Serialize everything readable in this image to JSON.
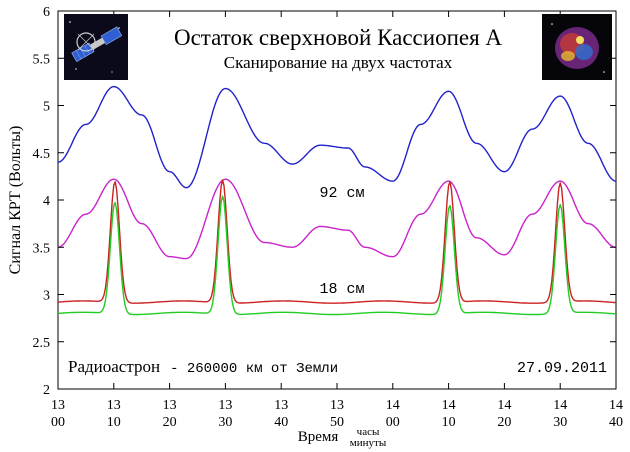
{
  "chart_data": {
    "type": "line",
    "title": "Остаток сверхновой Кассиопея А",
    "subtitle": "Сканирование на двух частотах",
    "ylabel": "Сигнал КРТ (Вольты)",
    "xlabel": "Время",
    "xlabel_units_top": "часы",
    "xlabel_units_bottom": "минуты",
    "ylim": [
      2,
      6
    ],
    "y_ticks": [
      "2",
      "2.5",
      "3",
      "3.5",
      "4",
      "4.5",
      "5",
      "5.5",
      "6"
    ],
    "x_ticks": [
      {
        "hour": "13",
        "minute": "00"
      },
      {
        "hour": "13",
        "minute": "10"
      },
      {
        "hour": "13",
        "minute": "20"
      },
      {
        "hour": "13",
        "minute": "30"
      },
      {
        "hour": "13",
        "minute": "40"
      },
      {
        "hour": "13",
        "minute": "50"
      },
      {
        "hour": "14",
        "minute": "00"
      },
      {
        "hour": "14",
        "minute": "10"
      },
      {
        "hour": "14",
        "minute": "20"
      },
      {
        "hour": "14",
        "minute": "30"
      },
      {
        "hour": "14",
        "minute": "40"
      }
    ],
    "x_unit": "minutes since 13:00",
    "xlim": [
      0,
      100
    ],
    "grid": false,
    "annotations": {
      "label_92": "92 см",
      "label_18": "18 см",
      "footer_left_word": "Радиоастрон",
      "footer_left_rest": "- 260000 км от Земли",
      "date": "27.09.2011"
    },
    "series": [
      {
        "color": "#2222cc",
        "x": [
          0,
          5,
          10,
          15,
          20,
          23,
          30,
          37,
          42,
          47,
          52,
          55,
          60,
          65,
          70,
          75,
          80,
          85,
          90,
          95,
          100
        ],
        "values": [
          4.4,
          4.8,
          5.2,
          4.9,
          4.3,
          4.13,
          5.18,
          4.6,
          4.38,
          4.58,
          4.55,
          4.35,
          4.2,
          4.8,
          5.15,
          4.6,
          4.3,
          4.75,
          5.1,
          4.6,
          4.2
        ]
      },
      {
        "color": "#cc22cc",
        "x": [
          0,
          5,
          10,
          15,
          20,
          23,
          30,
          37,
          42,
          47,
          52,
          55,
          60,
          65,
          70,
          75,
          80,
          85,
          90,
          95,
          100
        ],
        "values": [
          3.5,
          3.85,
          4.22,
          3.75,
          3.4,
          3.38,
          4.22,
          3.55,
          3.5,
          3.72,
          3.68,
          3.5,
          3.4,
          3.85,
          4.2,
          3.6,
          3.42,
          3.85,
          4.2,
          3.75,
          3.5
        ]
      },
      {
        "color": "#cc2222",
        "baseline": 2.92,
        "peaks": [
          {
            "x": 10.2,
            "value": 4.2
          },
          {
            "x": 29.5,
            "value": 4.22
          },
          {
            "x": 70.2,
            "value": 4.2
          },
          {
            "x": 90.0,
            "value": 4.18
          }
        ]
      },
      {
        "color": "#22cc22",
        "baseline": 2.8,
        "peaks": [
          {
            "x": 10.2,
            "value": 3.98
          },
          {
            "x": 29.5,
            "value": 4.05
          },
          {
            "x": 70.2,
            "value": 3.95
          },
          {
            "x": 90.0,
            "value": 3.95
          }
        ]
      }
    ]
  }
}
